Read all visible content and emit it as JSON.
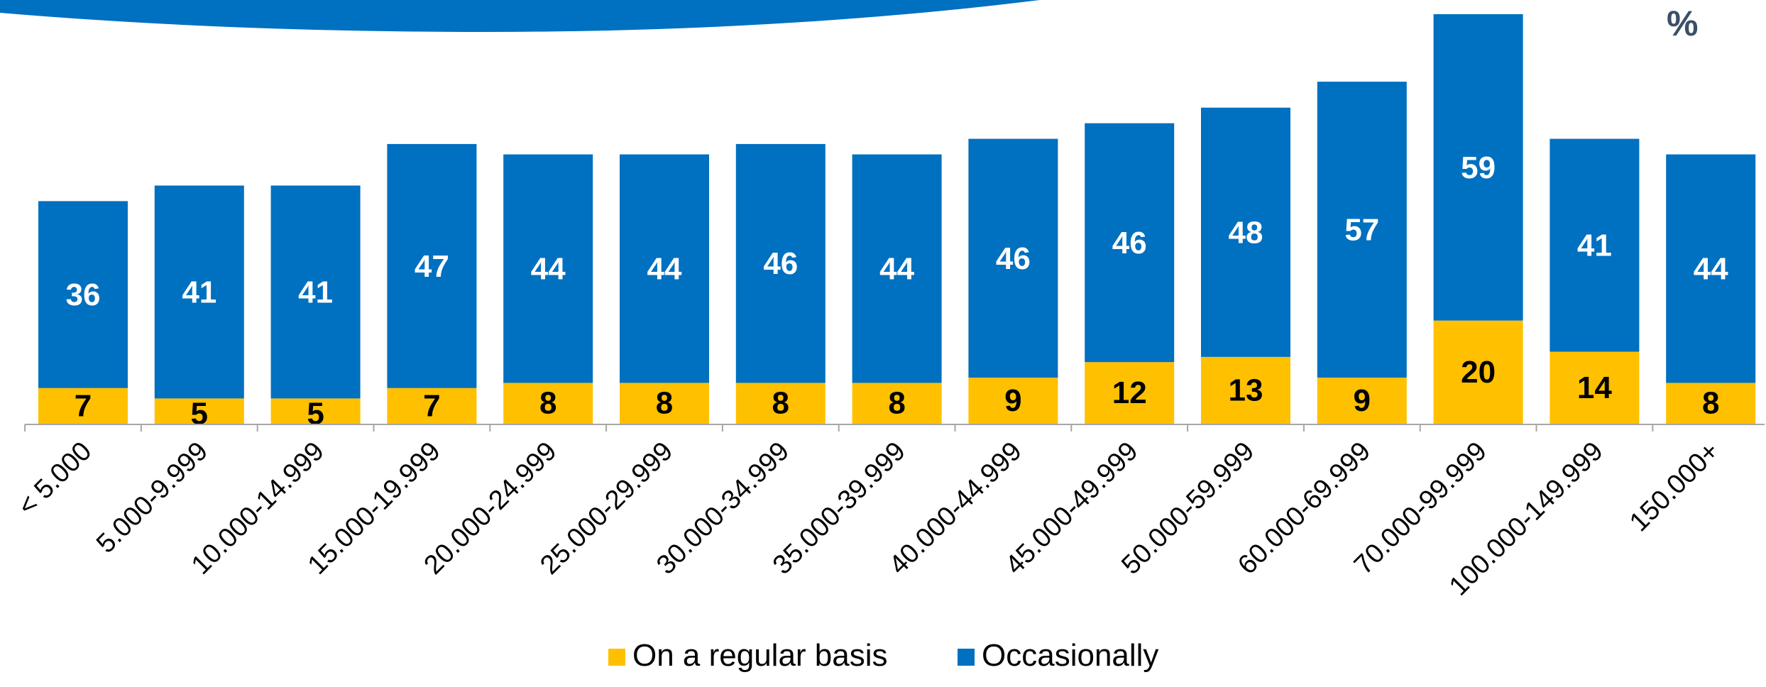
{
  "unit_label": "%",
  "colors": {
    "regular": "#FFC000",
    "occasional": "#0070C0",
    "header_swoosh": "#0070C0",
    "axis": "#a6a6a6"
  },
  "chart_data": {
    "type": "bar",
    "stacked": true,
    "orientation": "vertical",
    "title": "",
    "xlabel": "",
    "ylabel": "",
    "ylim": [
      0,
      79
    ],
    "grid": false,
    "legend_position": "bottom",
    "categories": [
      "< 5.000",
      "5.000-9.999",
      "10.000-14.999",
      "15.000-19.999",
      "20.000-24.999",
      "25.000-29.999",
      "30.000-34.999",
      "35.000-39.999",
      "40.000-44.999",
      "45.000-49.999",
      "50.000-59.999",
      "60.000-69.999",
      "70.000-99.999",
      "100.000-149.999",
      "150.000+"
    ],
    "series": [
      {
        "name": "On a regular basis",
        "color": "#FFC000",
        "values": [
          7,
          5,
          5,
          7,
          8,
          8,
          8,
          8,
          9,
          12,
          13,
          9,
          20,
          14,
          8
        ]
      },
      {
        "name": "Occasionally",
        "color": "#0070C0",
        "values": [
          36,
          41,
          41,
          47,
          44,
          44,
          46,
          44,
          46,
          46,
          48,
          57,
          59,
          41,
          44
        ]
      }
    ]
  }
}
